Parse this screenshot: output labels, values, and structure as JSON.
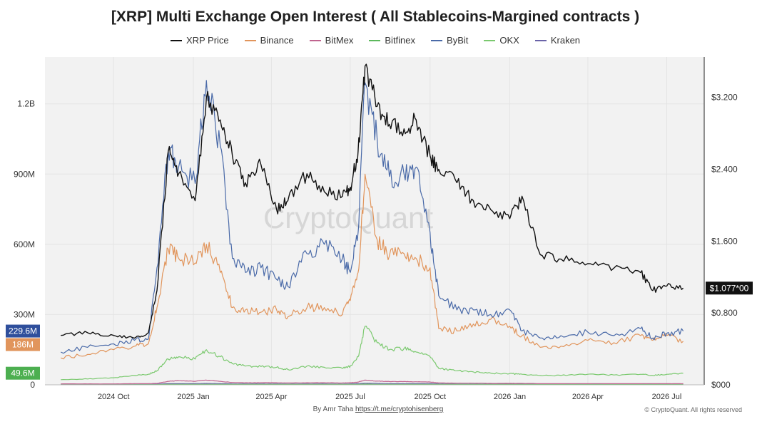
{
  "header": {
    "title": "[XRP] Multi Exchange Open Interest ( All Stablecoins-Margined contracts )"
  },
  "legend": [
    {
      "label": "XRP Price",
      "color": "#111111"
    },
    {
      "label": "Binance",
      "color": "#e1955c"
    },
    {
      "label": "BitMex",
      "color": "#c0648f"
    },
    {
      "label": "Bitfinex",
      "color": "#5cb85c"
    },
    {
      "label": "ByBit",
      "color": "#4a6aa8"
    },
    {
      "label": "OKX",
      "color": "#7bc96f"
    },
    {
      "label": "Kraken",
      "color": "#6a63a8"
    }
  ],
  "watermark": "CryptoQuant",
  "footer": {
    "byline_prefix": "By Amr Taha",
    "byline_link": "https://t.me/cryptohisenberg",
    "copyright": "© CryptoQuant. All rights reserved"
  },
  "chart_data": {
    "type": "line",
    "x_ticks": [
      "2024 Oct",
      "2025 Jan",
      "2025 Apr",
      "2025 Jul",
      "2025 Oct",
      "2026 Jan",
      "2026 Apr",
      "2026 Jul"
    ],
    "x_dates": [
      "2024-08-01",
      "2024-09-01",
      "2024-10-01",
      "2024-10-25",
      "2024-11-10",
      "2024-11-20",
      "2024-12-03",
      "2024-12-15",
      "2025-01-03",
      "2025-01-16",
      "2025-02-01",
      "2025-02-15",
      "2025-03-02",
      "2025-03-20",
      "2025-04-07",
      "2025-04-20",
      "2025-05-12",
      "2025-06-01",
      "2025-06-22",
      "2025-07-01",
      "2025-07-10",
      "2025-07-18",
      "2025-08-01",
      "2025-08-15",
      "2025-09-01",
      "2025-09-15",
      "2025-10-01",
      "2025-10-11",
      "2025-11-01",
      "2025-11-20",
      "2025-12-10",
      "2026-01-01",
      "2026-01-15",
      "2026-02-05",
      "2026-03-01",
      "2026-04-01",
      "2026-05-01",
      "2026-06-01",
      "2026-06-15",
      "2026-07-01",
      "2026-07-20"
    ],
    "left_axis": {
      "ticks": [
        "0",
        "300M",
        "600M",
        "900M",
        "1.2B"
      ],
      "values": [
        0,
        300000000,
        600000000,
        900000000,
        1200000000
      ],
      "range": [
        0,
        1400000000
      ]
    },
    "right_axis": {
      "ticks": [
        "$000",
        "$0.800",
        "$1.600",
        "$2.400",
        "$3.200"
      ],
      "values": [
        0,
        0.8,
        1.6,
        2.4,
        3.2
      ],
      "range": [
        0,
        3.65
      ]
    },
    "series": [
      {
        "name": "XRP Price",
        "axis": "right",
        "color": "#111111",
        "values": [
          0.55,
          0.58,
          0.55,
          0.52,
          0.58,
          1.05,
          2.6,
          2.35,
          2.05,
          3.2,
          2.95,
          2.55,
          2.25,
          2.45,
          1.95,
          2.05,
          2.35,
          2.15,
          2.1,
          2.2,
          2.6,
          3.55,
          3.1,
          2.9,
          2.85,
          2.95,
          2.55,
          2.4,
          2.25,
          2.05,
          1.95,
          1.85,
          2.1,
          1.45,
          1.4,
          1.35,
          1.3,
          1.25,
          1.05,
          1.1,
          1.077
        ]
      },
      {
        "name": "Binance",
        "axis": "left",
        "color": "#e1955c",
        "values": [
          115000000,
          130000000,
          150000000,
          165000000,
          175000000,
          330000000,
          580000000,
          540000000,
          520000000,
          600000000,
          480000000,
          330000000,
          320000000,
          310000000,
          320000000,
          290000000,
          330000000,
          330000000,
          300000000,
          360000000,
          480000000,
          900000000,
          620000000,
          550000000,
          560000000,
          540000000,
          500000000,
          240000000,
          230000000,
          260000000,
          280000000,
          250000000,
          210000000,
          160000000,
          165000000,
          190000000,
          180000000,
          210000000,
          190000000,
          210000000,
          186000000
        ]
      },
      {
        "name": "ByBit",
        "axis": "left",
        "color": "#4a6aa8",
        "values": [
          140000000,
          160000000,
          175000000,
          190000000,
          195000000,
          500000000,
          1000000000,
          930000000,
          860000000,
          1300000000,
          1020000000,
          540000000,
          480000000,
          500000000,
          450000000,
          420000000,
          560000000,
          600000000,
          540000000,
          480000000,
          650000000,
          1290000000,
          1050000000,
          890000000,
          900000000,
          930000000,
          650000000,
          380000000,
          320000000,
          320000000,
          300000000,
          320000000,
          230000000,
          200000000,
          210000000,
          225000000,
          210000000,
          240000000,
          200000000,
          220000000,
          229600000
        ]
      },
      {
        "name": "OKX",
        "axis": "left",
        "color": "#7bc96f",
        "values": [
          22000000,
          25000000,
          30000000,
          40000000,
          45000000,
          60000000,
          110000000,
          120000000,
          110000000,
          150000000,
          120000000,
          90000000,
          80000000,
          78000000,
          75000000,
          65000000,
          80000000,
          75000000,
          70000000,
          80000000,
          120000000,
          250000000,
          180000000,
          150000000,
          155000000,
          140000000,
          120000000,
          70000000,
          60000000,
          55000000,
          50000000,
          48000000,
          45000000,
          40000000,
          40000000,
          45000000,
          42000000,
          45000000,
          40000000,
          45000000,
          49600000
        ]
      },
      {
        "name": "BitMex",
        "axis": "left",
        "color": "#c0648f",
        "values": [
          4000000,
          4000000,
          4000000,
          5000000,
          5000000,
          6000000,
          15000000,
          18000000,
          15000000,
          20000000,
          15000000,
          10000000,
          9000000,
          9000000,
          9000000,
          8000000,
          9000000,
          9000000,
          8000000,
          9000000,
          12000000,
          20000000,
          16000000,
          14000000,
          14000000,
          13000000,
          12000000,
          8000000,
          7000000,
          7000000,
          6000000,
          6000000,
          6000000,
          5000000,
          5000000,
          5000000,
          5000000,
          5000000,
          5000000,
          5000000,
          5000000
        ]
      },
      {
        "name": "Kraken",
        "axis": "left",
        "color": "#6a63a8",
        "values": [
          2000000,
          2000000,
          2000000,
          2000000,
          2000000,
          3000000,
          5000000,
          5000000,
          5000000,
          6000000,
          5000000,
          4000000,
          4000000,
          4000000,
          4000000,
          3000000,
          4000000,
          4000000,
          3000000,
          4000000,
          5000000,
          7000000,
          6000000,
          5000000,
          5000000,
          5000000,
          5000000,
          4000000,
          3000000,
          3000000,
          3000000,
          3000000,
          3000000,
          3000000,
          3000000,
          3000000,
          3000000,
          3000000,
          3000000,
          3000000,
          3000000
        ]
      },
      {
        "name": "Bitfinex",
        "axis": "left",
        "color": "#5cb85c",
        "values": [
          1000000,
          1000000,
          1000000,
          1000000,
          1000000,
          1000000,
          2000000,
          2000000,
          2000000,
          2000000,
          2000000,
          2000000,
          2000000,
          2000000,
          2000000,
          2000000,
          2000000,
          2000000,
          2000000,
          2000000,
          2000000,
          3000000,
          2000000,
          2000000,
          2000000,
          2000000,
          2000000,
          2000000,
          2000000,
          2000000,
          2000000,
          2000000,
          2000000,
          2000000,
          2000000,
          2000000,
          2000000,
          2000000,
          2000000,
          2000000,
          2000000
        ]
      }
    ],
    "last_value_tags": [
      {
        "label": "229.6M",
        "color": "#2f4f9c",
        "axis": "left",
        "value": 229600000
      },
      {
        "label": "186M",
        "color": "#e1955c",
        "axis": "left",
        "value": 186000000
      },
      {
        "label": "49.6M",
        "color": "#4caf50",
        "axis": "left",
        "value": 49600000
      },
      {
        "label": "$1.077*00",
        "color": "#111111",
        "axis": "right",
        "value": 1.077
      }
    ],
    "grid": true,
    "legend_position": "top"
  }
}
